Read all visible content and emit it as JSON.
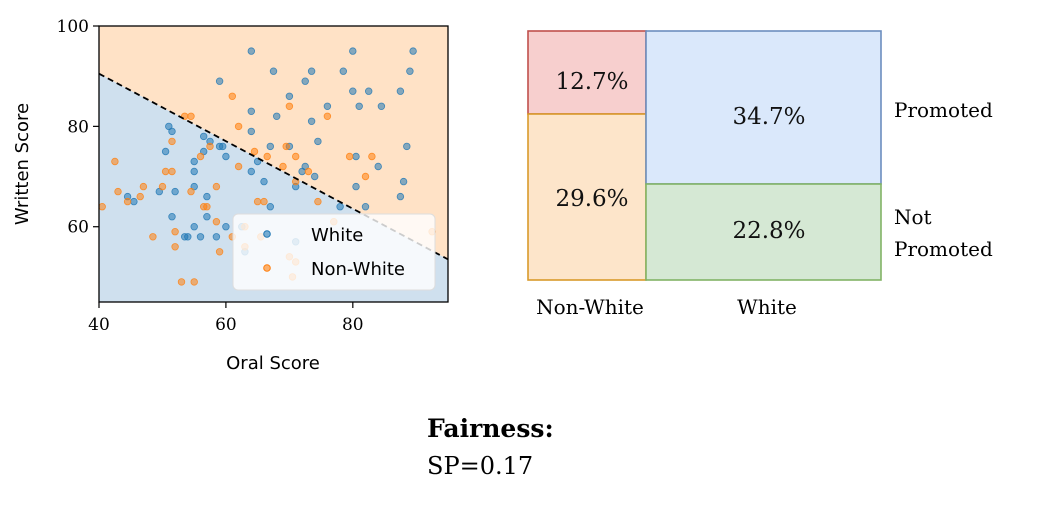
{
  "chart_data": [
    {
      "type": "scatter",
      "xlabel": "Oral Score",
      "ylabel": "Written Score",
      "xlim": [
        40,
        95
      ],
      "ylim": [
        45,
        100
      ],
      "xticks": [
        40,
        60,
        80
      ],
      "yticks": [
        60,
        80,
        100
      ],
      "grid": false,
      "legend_placement": "bottom-right",
      "decision_boundary": {
        "x": [
          40,
          95
        ],
        "y": [
          90.5,
          53.5
        ]
      },
      "region_colors": {
        "above": "#ffe2c6",
        "below": "#cfe0ee"
      },
      "series": [
        {
          "name": "White",
          "color": "#1f77b4",
          "points": [
            [
              64,
              95
            ],
            [
              80,
              95
            ],
            [
              89.5,
              95
            ],
            [
              89,
              91
            ],
            [
              67.5,
              91
            ],
            [
              73.5,
              91
            ],
            [
              78.5,
              91
            ],
            [
              59,
              89
            ],
            [
              72.5,
              89
            ],
            [
              80,
              87
            ],
            [
              82.5,
              87
            ],
            [
              87.5,
              87
            ],
            [
              70,
              86
            ],
            [
              84.5,
              84
            ],
            [
              81,
              84
            ],
            [
              76,
              84
            ],
            [
              64,
              83
            ],
            [
              68,
              82
            ],
            [
              73.5,
              81
            ],
            [
              51,
              80
            ],
            [
              51.5,
              79
            ],
            [
              64,
              79
            ],
            [
              56.5,
              78
            ],
            [
              57.5,
              77
            ],
            [
              74.5,
              77
            ],
            [
              59,
              76
            ],
            [
              59.5,
              76
            ],
            [
              67,
              76
            ],
            [
              70,
              76
            ],
            [
              88.5,
              76
            ],
            [
              56.5,
              75
            ],
            [
              50.5,
              75
            ],
            [
              60,
              74
            ],
            [
              80.5,
              74
            ],
            [
              55,
              73
            ],
            [
              65,
              73
            ],
            [
              72.5,
              72
            ],
            [
              84,
              72
            ],
            [
              55,
              71
            ],
            [
              64,
              71
            ],
            [
              72,
              71
            ],
            [
              74,
              70
            ],
            [
              66,
              69
            ],
            [
              71,
              68
            ],
            [
              80.5,
              68
            ],
            [
              88,
              69
            ],
            [
              52,
              67
            ],
            [
              49.5,
              67
            ],
            [
              55,
              68
            ],
            [
              57,
              66
            ],
            [
              87.5,
              66
            ],
            [
              78,
              64
            ],
            [
              44.5,
              66
            ],
            [
              45.5,
              65
            ],
            [
              67,
              64
            ],
            [
              51.5,
              62
            ],
            [
              57,
              62
            ],
            [
              82,
              64
            ],
            [
              60,
              60
            ],
            [
              55,
              60
            ],
            [
              62.5,
              60
            ],
            [
              71,
              57
            ],
            [
              58.5,
              58
            ],
            [
              54,
              58
            ],
            [
              53.5,
              58
            ],
            [
              56,
              58
            ],
            [
              63,
              55
            ]
          ]
        },
        {
          "name": "Non-White",
          "color": "#ff7f0e",
          "points": [
            [
              61,
              86
            ],
            [
              70,
              84
            ],
            [
              53.5,
              82
            ],
            [
              54.5,
              82
            ],
            [
              62,
              80
            ],
            [
              76,
              82
            ],
            [
              64.5,
              75
            ],
            [
              69.5,
              76
            ],
            [
              51.5,
              77
            ],
            [
              57.5,
              76
            ],
            [
              56,
              74
            ],
            [
              66.5,
              74
            ],
            [
              71,
              74
            ],
            [
              79.5,
              74
            ],
            [
              83,
              74
            ],
            [
              69,
              72
            ],
            [
              73,
              71
            ],
            [
              82,
              70
            ],
            [
              62,
              72
            ],
            [
              50.5,
              71
            ],
            [
              51.5,
              71
            ],
            [
              42.5,
              73
            ],
            [
              71,
              69
            ],
            [
              43,
              67
            ],
            [
              47,
              68
            ],
            [
              50,
              68
            ],
            [
              54.5,
              67
            ],
            [
              58.5,
              68
            ],
            [
              46.5,
              66
            ],
            [
              44.5,
              65
            ],
            [
              40.5,
              64
            ],
            [
              56.5,
              64
            ],
            [
              57,
              64
            ],
            [
              65,
              65
            ],
            [
              66,
              65
            ],
            [
              74.5,
              65
            ],
            [
              58.5,
              61
            ],
            [
              77,
              61
            ],
            [
              61,
              58
            ],
            [
              48.5,
              58
            ],
            [
              52,
              56
            ],
            [
              59,
              55
            ],
            [
              63,
              56
            ],
            [
              65.5,
              58
            ],
            [
              70,
              54
            ],
            [
              71,
              53
            ],
            [
              92.5,
              59
            ],
            [
              53,
              49
            ],
            [
              55,
              49
            ],
            [
              70.5,
              50
            ],
            [
              52,
              59
            ],
            [
              63,
              60
            ]
          ]
        }
      ]
    },
    {
      "type": "mosaic",
      "categories": [
        "Non-White",
        "White"
      ],
      "row_labels": [
        "Promoted",
        "Not Promoted"
      ],
      "cells": [
        {
          "group": "Non-White",
          "outcome": "Promoted",
          "value": 12.7,
          "label": "12.7%",
          "fill": "#f7cfce",
          "stroke": "#c0504d"
        },
        {
          "group": "Non-White",
          "outcome": "Not Promoted",
          "value": 29.6,
          "label": "29.6%",
          "fill": "#fde5ca",
          "stroke": "#d99a2b"
        },
        {
          "group": "White",
          "outcome": "Promoted",
          "value": 34.7,
          "label": "34.7%",
          "fill": "#dae8fb",
          "stroke": "#6c8ebf"
        },
        {
          "group": "White",
          "outcome": "Not Promoted",
          "value": 22.8,
          "label": "22.8%",
          "fill": "#d5e8d4",
          "stroke": "#82b366"
        }
      ]
    }
  ],
  "labels": {
    "not_promoted_line1": "Not",
    "not_promoted_line2": "Promoted"
  },
  "fairness": {
    "title": "Fairness:",
    "value": "SP=0.17"
  }
}
